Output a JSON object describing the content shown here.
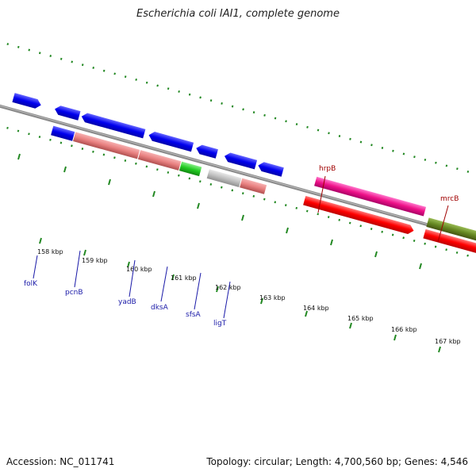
{
  "title": "Escherichia coli IAI1, complete genome",
  "accession": "Accession: NC_011741",
  "summary": "Topology: circular; Length: 4,700,560 bp; Genes: 4,546",
  "ticks": [
    "158 kbp",
    "159 kbp",
    "160 kbp",
    "161 kbp",
    "162 kbp",
    "163 kbp",
    "164 kbp",
    "165 kbp",
    "166 kbp",
    "167 kbp"
  ],
  "genes": {
    "folK": "folK",
    "pcnB": "pcnB",
    "yadB": "yadB",
    "dksA": "dksA",
    "sfsA": "sfsA",
    "ligT": "ligT",
    "hrpB": "hrpB",
    "mrcB": "mrcB"
  },
  "colors": {
    "cds_forward": "#0000ee",
    "cds_reverse": "#ff0000",
    "rna": "#ee8888",
    "green": "#22cc22",
    "grey": "#bbbbbb",
    "pink": "#ee1188",
    "olive": "#668822",
    "backbone": "#888888",
    "tick": "#228822",
    "label_blue": "#1a1aa8",
    "label_red": "#a00000"
  }
}
